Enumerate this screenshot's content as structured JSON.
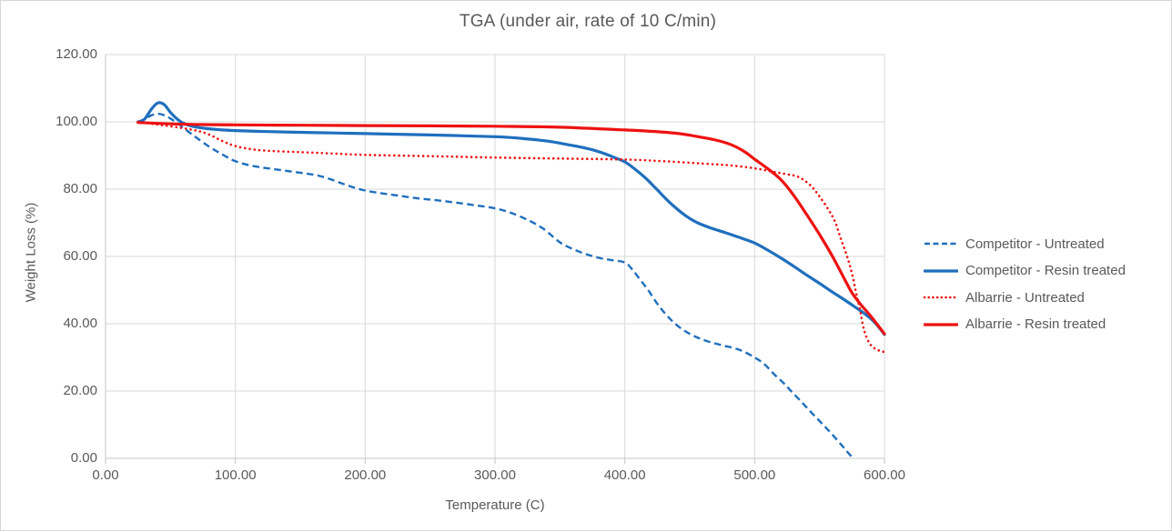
{
  "chart": {
    "title": "TGA (under air, rate of 10 C/min)",
    "x_axis": {
      "title": "Temperature (C)"
    },
    "y_axis": {
      "title": "Weight Loss (%)"
    }
  },
  "colors": {
    "blue_series": "#1F6FBE",
    "red_series": "#EE1111",
    "grid": "#D9D9D9",
    "axis": "#C6C6C6",
    "text": "#595959"
  },
  "chart_data": {
    "type": "line",
    "title": "TGA (under air, rate of 10 C/min)",
    "xlabel": "Temperature (C)",
    "ylabel": "Weight Loss (%)",
    "xlim": [
      0,
      600
    ],
    "ylim": [
      0,
      120
    ],
    "x_ticks": [
      0,
      100,
      200,
      300,
      400,
      500,
      600
    ],
    "x_tick_labels": [
      "0.00",
      "100.00",
      "200.00",
      "300.00",
      "400.00",
      "500.00",
      "600.00"
    ],
    "y_ticks": [
      0,
      20,
      40,
      60,
      80,
      100,
      120
    ],
    "y_tick_labels": [
      "0.00",
      "20.00",
      "40.00",
      "60.00",
      "80.00",
      "100.00",
      "120.00"
    ],
    "grid": true,
    "legend_position": "right",
    "series": [
      {
        "name": "Competitor - Untreated",
        "color": "#1F6FBE",
        "line_style": "dashed",
        "points": [
          [
            25,
            100
          ],
          [
            30,
            100.7
          ],
          [
            35,
            101.9
          ],
          [
            40,
            102.4
          ],
          [
            45,
            102
          ],
          [
            50,
            101
          ],
          [
            56,
            99.4
          ],
          [
            62,
            97.6
          ],
          [
            70,
            95.3
          ],
          [
            80,
            92.6
          ],
          [
            90,
            90.3
          ],
          [
            100,
            88.3
          ],
          [
            112,
            87
          ],
          [
            125,
            86.2
          ],
          [
            140,
            85.4
          ],
          [
            155,
            84.6
          ],
          [
            163,
            84.1
          ],
          [
            172,
            83.1
          ],
          [
            182,
            81.7
          ],
          [
            192,
            80.4
          ],
          [
            200,
            79.6
          ],
          [
            212,
            78.8
          ],
          [
            225,
            78.1
          ],
          [
            240,
            77.3
          ],
          [
            255,
            76.7
          ],
          [
            270,
            76
          ],
          [
            285,
            75.2
          ],
          [
            300,
            74.3
          ],
          [
            312,
            73
          ],
          [
            325,
            70.9
          ],
          [
            337,
            68.3
          ],
          [
            350,
            64.2
          ],
          [
            360,
            62.2
          ],
          [
            370,
            60.7
          ],
          [
            380,
            59.6
          ],
          [
            390,
            58.9
          ],
          [
            400,
            58.2
          ],
          [
            406,
            56
          ],
          [
            412,
            53
          ],
          [
            418,
            50
          ],
          [
            424,
            46.5
          ],
          [
            430,
            43.5
          ],
          [
            436,
            41
          ],
          [
            443,
            38.7
          ],
          [
            452,
            36.6
          ],
          [
            462,
            35
          ],
          [
            475,
            33.6
          ],
          [
            488,
            32.3
          ],
          [
            500,
            30
          ],
          [
            508,
            27.8
          ],
          [
            515,
            25
          ],
          [
            522,
            22.5
          ],
          [
            528,
            20
          ],
          [
            536,
            16.8
          ],
          [
            544,
            13.5
          ],
          [
            552,
            10.3
          ],
          [
            560,
            7
          ],
          [
            568,
            3.5
          ],
          [
            574,
            0.8
          ],
          [
            577,
            0
          ]
        ]
      },
      {
        "name": "Competitor - Resin treated",
        "color": "#1F6FBE",
        "line_style": "solid",
        "points": [
          [
            25,
            100
          ],
          [
            30,
            100.8
          ],
          [
            35,
            103.6
          ],
          [
            40,
            105.6
          ],
          [
            45,
            105.2
          ],
          [
            50,
            102.8
          ],
          [
            55,
            100.9
          ],
          [
            60,
            99.6
          ],
          [
            68,
            98.6
          ],
          [
            78,
            98
          ],
          [
            90,
            97.6
          ],
          [
            100,
            97.4
          ],
          [
            125,
            97.1
          ],
          [
            150,
            96.9
          ],
          [
            175,
            96.7
          ],
          [
            200,
            96.5
          ],
          [
            250,
            96.1
          ],
          [
            300,
            95.6
          ],
          [
            320,
            95.1
          ],
          [
            340,
            94.3
          ],
          [
            355,
            93.3
          ],
          [
            370,
            92.2
          ],
          [
            382,
            90.9
          ],
          [
            392,
            89.4
          ],
          [
            400,
            88.1
          ],
          [
            408,
            85.9
          ],
          [
            416,
            83.3
          ],
          [
            424,
            80.2
          ],
          [
            432,
            77
          ],
          [
            440,
            74.2
          ],
          [
            448,
            71.8
          ],
          [
            456,
            70
          ],
          [
            466,
            68.5
          ],
          [
            478,
            67
          ],
          [
            490,
            65.4
          ],
          [
            500,
            64
          ],
          [
            510,
            61.9
          ],
          [
            520,
            59.6
          ],
          [
            530,
            57.1
          ],
          [
            540,
            54.5
          ],
          [
            550,
            52
          ],
          [
            560,
            49.4
          ],
          [
            570,
            46.9
          ],
          [
            578,
            44.8
          ],
          [
            586,
            42.6
          ],
          [
            593,
            40.2
          ],
          [
            600,
            36.8
          ]
        ]
      },
      {
        "name": "Albarrie - Untreated",
        "color": "#EE1111",
        "line_style": "dotted",
        "points": [
          [
            25,
            100
          ],
          [
            40,
            99.2
          ],
          [
            55,
            98.4
          ],
          [
            70,
            97.4
          ],
          [
            80,
            96.2
          ],
          [
            90,
            94.3
          ],
          [
            100,
            92.8
          ],
          [
            112,
            91.9
          ],
          [
            125,
            91.4
          ],
          [
            150,
            91
          ],
          [
            175,
            90.6
          ],
          [
            200,
            90.2
          ],
          [
            250,
            89.8
          ],
          [
            300,
            89.4
          ],
          [
            350,
            89.1
          ],
          [
            400,
            88.8
          ],
          [
            430,
            88.3
          ],
          [
            460,
            87.6
          ],
          [
            480,
            87.1
          ],
          [
            500,
            86.2
          ],
          [
            515,
            85.1
          ],
          [
            525,
            84.4
          ],
          [
            534,
            83.6
          ],
          [
            543,
            81.1
          ],
          [
            550,
            77.8
          ],
          [
            557,
            73.8
          ],
          [
            562,
            70.3
          ],
          [
            566,
            65.7
          ],
          [
            571,
            60.3
          ],
          [
            575,
            54.9
          ],
          [
            578,
            49.5
          ],
          [
            581,
            44.5
          ],
          [
            584,
            38.5
          ],
          [
            588,
            34.5
          ],
          [
            592,
            32.8
          ],
          [
            596,
            32
          ],
          [
            600,
            31.6
          ]
        ]
      },
      {
        "name": "Albarrie - Resin treated",
        "color": "#EE1111",
        "line_style": "solid",
        "points": [
          [
            25,
            99.8
          ],
          [
            50,
            99.4
          ],
          [
            75,
            99.2
          ],
          [
            100,
            99.1
          ],
          [
            150,
            99
          ],
          [
            200,
            98.9
          ],
          [
            250,
            98.8
          ],
          [
            300,
            98.7
          ],
          [
            350,
            98.4
          ],
          [
            400,
            97.6
          ],
          [
            420,
            97.2
          ],
          [
            440,
            96.6
          ],
          [
            455,
            95.7
          ],
          [
            470,
            94.6
          ],
          [
            482,
            93.2
          ],
          [
            492,
            91.2
          ],
          [
            500,
            88.9
          ],
          [
            510,
            86.1
          ],
          [
            520,
            82.9
          ],
          [
            530,
            78.2
          ],
          [
            540,
            72.5
          ],
          [
            550,
            66.5
          ],
          [
            560,
            60
          ],
          [
            568,
            54.2
          ],
          [
            575,
            49.2
          ],
          [
            582,
            45.6
          ],
          [
            590,
            42
          ],
          [
            600,
            37
          ]
        ]
      }
    ]
  }
}
